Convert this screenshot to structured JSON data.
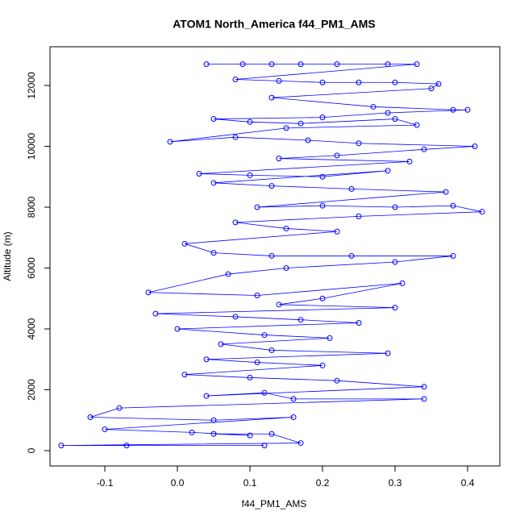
{
  "chart_data": {
    "type": "scatter",
    "lines": true,
    "marker": "open-circle",
    "title": "ATOM1 North_America f44_PM1_AMS",
    "x_label": "f44_PM1_AMS",
    "y_label": "Altitude (m)",
    "color": "#0000ff",
    "xlim": [
      -0.1756,
      0.4444
    ],
    "ylim": [
      -503,
      13272
    ],
    "xticks": [
      -0.1,
      {
        "value": 0,
        "label": "0.0"
      },
      0.1,
      0.2,
      0.3,
      0.4
    ],
    "yticks": [
      0,
      2000,
      4000,
      6000,
      8000,
      10000,
      12000
    ],
    "x": [
      0.04,
      0.09,
      0.13,
      0.17,
      0.22,
      0.29,
      0.33,
      0.08,
      0.14,
      0.2,
      0.25,
      0.3,
      0.36,
      0.35,
      0.13,
      0.27,
      0.38,
      0.4,
      0.29,
      0.2,
      0.05,
      0.1,
      0.17,
      0.3,
      0.33,
      0.15,
      -0.01,
      0.08,
      0.18,
      0.25,
      0.41,
      0.34,
      0.22,
      0.14,
      0.32,
      0.03,
      0.1,
      0.2,
      0.29,
      0.05,
      0.13,
      0.24,
      0.37,
      0.11,
      0.2,
      0.3,
      0.38,
      0.42,
      0.25,
      0.08,
      0.15,
      0.22,
      0.01,
      0.05,
      0.13,
      0.24,
      0.38,
      0.3,
      0.15,
      0.07,
      -0.04,
      0.11,
      0.31,
      0.2,
      0.14,
      0.3,
      -0.03,
      0.08,
      0.17,
      0.25,
      0.0,
      0.12,
      0.21,
      0.06,
      0.13,
      0.29,
      0.04,
      0.11,
      0.2,
      0.01,
      0.1,
      0.22,
      0.34,
      0.04,
      0.12,
      0.16,
      0.34,
      -0.08,
      -0.12,
      0.05,
      0.16,
      -0.1,
      0.02,
      0.1,
      0.05,
      0.13,
      0.17,
      -0.16,
      -0.07,
      0.12
    ],
    "values": [
      12700,
      12700,
      12700,
      12700,
      12700,
      12700,
      12700,
      12200,
      12150,
      12100,
      12100,
      12100,
      12050,
      11900,
      11600,
      11300,
      11200,
      11200,
      11100,
      10950,
      10900,
      10800,
      10750,
      10900,
      10700,
      10600,
      10150,
      10300,
      10200,
      10100,
      10000,
      9900,
      9700,
      9600,
      9500,
      9100,
      9050,
      9000,
      9200,
      8800,
      8700,
      8600,
      8500,
      8000,
      8050,
      8000,
      8050,
      7850,
      7700,
      7500,
      7300,
      7200,
      6800,
      6500,
      6400,
      6400,
      6400,
      6200,
      6000,
      5800,
      5200,
      5100,
      5500,
      5000,
      4800,
      4700,
      4500,
      4400,
      4300,
      4200,
      4000,
      3800,
      3700,
      3500,
      3300,
      3200,
      3000,
      2900,
      2800,
      2500,
      2400,
      2300,
      2100,
      1800,
      1900,
      1700,
      1700,
      1400,
      1100,
      1000,
      1100,
      700,
      600,
      500,
      550,
      550,
      250,
      170,
      170,
      170
    ]
  }
}
